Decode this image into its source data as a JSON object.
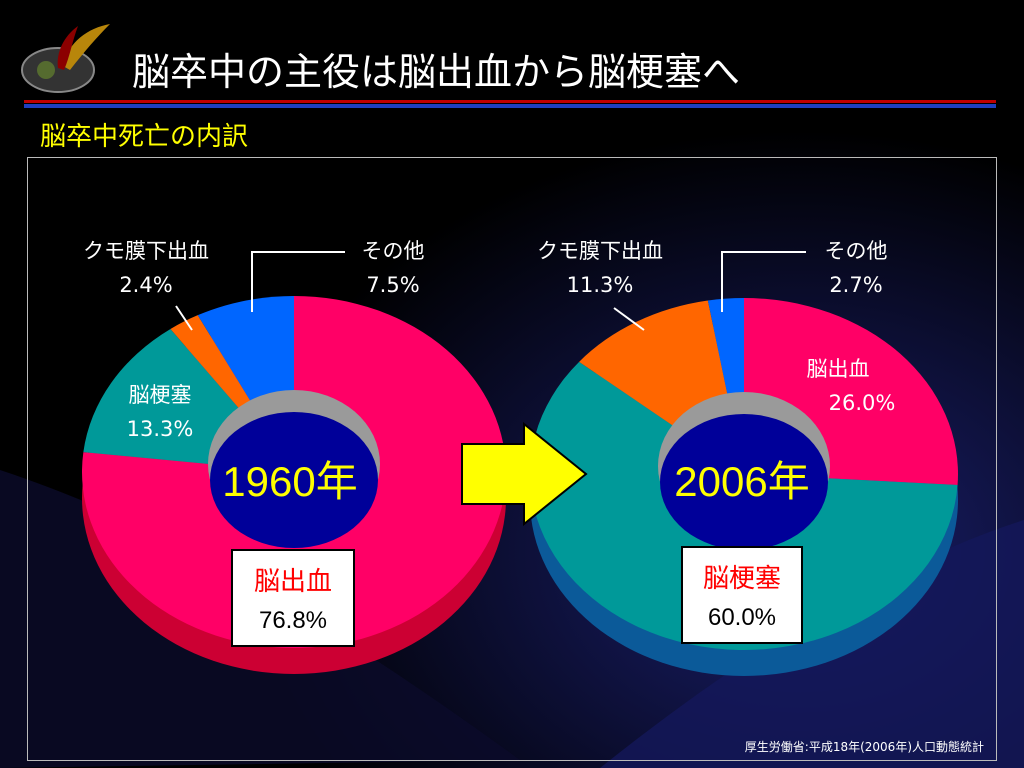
{
  "title": "脳卒中の主役は脳出血から脳梗塞へ",
  "subtitle": "脳卒中死亡の内訳",
  "source": "厚生労働省:平成18年(2006年)人口動態統計",
  "colors": {
    "hemorrhage": "#ff0066",
    "infarction": "#009999",
    "subarachnoid": "#ff6600",
    "other": "#0066ff",
    "hub": "#000099",
    "arrow": "#ffff00"
  },
  "chart_data": [
    {
      "type": "pie",
      "year_label": "1960年",
      "slices": [
        {
          "name": "脳出血",
          "value": 76.8,
          "label": "76.8%"
        },
        {
          "name": "脳梗塞",
          "value": 13.3,
          "label": "13.3%"
        },
        {
          "name": "クモ膜下出血",
          "value": 2.4,
          "label": "2.4%"
        },
        {
          "name": "その他",
          "value": 7.5,
          "label": "7.5%"
        }
      ]
    },
    {
      "type": "pie",
      "year_label": "2006年",
      "slices": [
        {
          "name": "脳出血",
          "value": 26.0,
          "label": "26.0%"
        },
        {
          "name": "脳梗塞",
          "value": 60.0,
          "label": "60.0%"
        },
        {
          "name": "クモ膜下出血",
          "value": 11.3,
          "label": "11.3%"
        },
        {
          "name": "その他",
          "value": 2.7,
          "label": "2.7%"
        }
      ]
    }
  ]
}
